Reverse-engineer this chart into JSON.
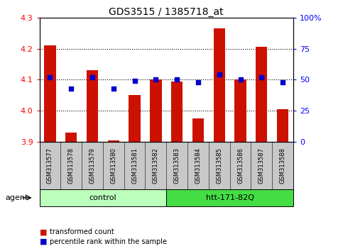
{
  "title": "GDS3515 / 1385718_at",
  "samples": [
    "GSM313577",
    "GSM313578",
    "GSM313579",
    "GSM313580",
    "GSM313581",
    "GSM313582",
    "GSM313583",
    "GSM313584",
    "GSM313585",
    "GSM313586",
    "GSM313587",
    "GSM313588"
  ],
  "transformed_count": [
    4.21,
    3.93,
    4.13,
    3.905,
    4.05,
    4.1,
    4.095,
    3.975,
    4.265,
    4.1,
    4.205,
    4.005
  ],
  "percentile_rank": [
    52,
    43,
    52,
    43,
    49,
    50,
    50,
    48,
    54,
    50,
    52,
    48
  ],
  "ylim_left": [
    3.9,
    4.3
  ],
  "ylim_right": [
    0,
    100
  ],
  "yticks_left": [
    3.9,
    4.0,
    4.1,
    4.2,
    4.3
  ],
  "yticks_right": [
    0,
    25,
    50,
    75,
    100
  ],
  "ytick_labels_right": [
    "0",
    "25",
    "50",
    "75",
    "100%"
  ],
  "bar_color": "#cc1100",
  "marker_color": "#0000cc",
  "bg_color_xticklabel": "#c8c8c8",
  "agent_label": "agent",
  "groups": [
    {
      "label": "control",
      "start": 0,
      "end": 5,
      "color": "#bbffbb"
    },
    {
      "label": "htt-171-82Q",
      "start": 6,
      "end": 11,
      "color": "#44dd44"
    }
  ],
  "legend_bar_label": "transformed count",
  "legend_marker_label": "percentile rank within the sample",
  "base_value": 3.9,
  "xlim": [
    -0.5,
    11.5
  ]
}
